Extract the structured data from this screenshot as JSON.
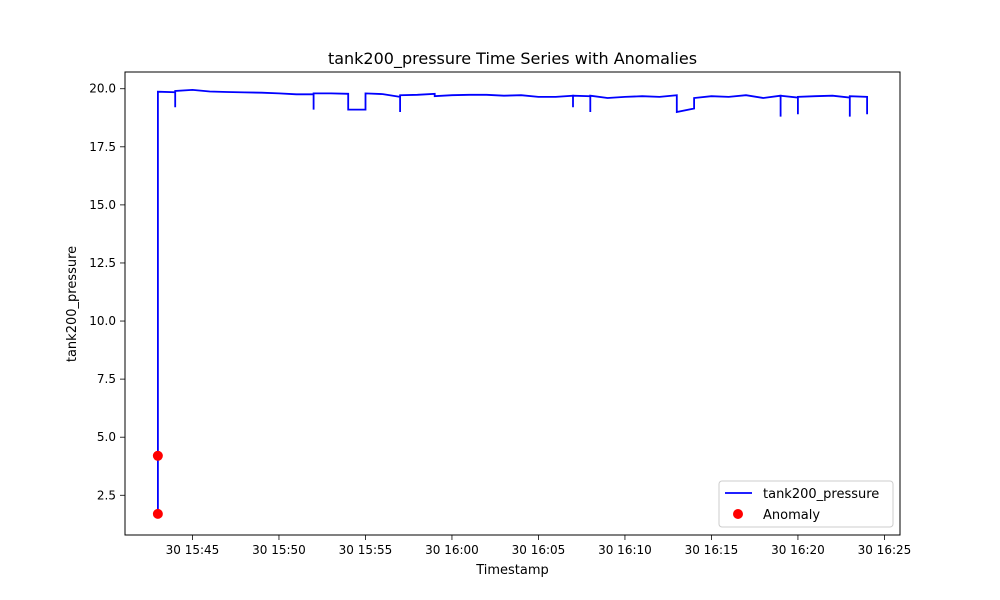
{
  "chart_data": {
    "type": "line",
    "title": "tank200_pressure Time Series with Anomalies",
    "xlabel": "Timestamp",
    "ylabel": "tank200_pressure",
    "xlim": [
      "15:41:06",
      "16:25:54"
    ],
    "ylim": [
      0.79,
      20.72
    ],
    "x_ticks": [
      "30 15:45",
      "30 15:50",
      "30 15:55",
      "30 16:00",
      "30 16:05",
      "30 16:10",
      "30 16:15",
      "30 16:20",
      "30 16:25"
    ],
    "y_ticks": [
      "2.5",
      "5.0",
      "7.5",
      "10.0",
      "12.5",
      "15.0",
      "17.5",
      "20.0"
    ],
    "grid": false,
    "legend_position": "lower right",
    "series": [
      {
        "name": "tank200_pressure",
        "color": "#0000ff",
        "points": [
          [
            "15:43",
            1.7
          ],
          [
            "15:43",
            4.2
          ],
          [
            "15:43",
            19.87
          ],
          [
            "15:44",
            19.85
          ],
          [
            "15:44",
            19.2
          ],
          [
            "15:44",
            19.9
          ],
          [
            "15:45",
            19.95
          ],
          [
            "15:46",
            19.88
          ],
          [
            "15:47",
            19.86
          ],
          [
            "15:48",
            19.84
          ],
          [
            "15:49",
            19.83
          ],
          [
            "15:50",
            19.8
          ],
          [
            "15:51",
            19.76
          ],
          [
            "15:52",
            19.76
          ],
          [
            "15:52",
            19.1
          ],
          [
            "15:52",
            19.8
          ],
          [
            "15:53",
            19.8
          ],
          [
            "15:54",
            19.78
          ],
          [
            "15:54",
            19.1
          ],
          [
            "15:55",
            19.1
          ],
          [
            "15:55",
            19.8
          ],
          [
            "15:56",
            19.77
          ],
          [
            "15:57",
            19.65
          ],
          [
            "15:57",
            19.0
          ],
          [
            "15:57",
            19.72
          ],
          [
            "15:58",
            19.74
          ],
          [
            "15:59",
            19.78
          ],
          [
            "15:59",
            19.68
          ],
          [
            "16:00",
            19.72
          ],
          [
            "16:01",
            19.74
          ],
          [
            "16:02",
            19.74
          ],
          [
            "16:03",
            19.7
          ],
          [
            "16:04",
            19.72
          ],
          [
            "16:05",
            19.65
          ],
          [
            "16:06",
            19.65
          ],
          [
            "16:07",
            19.7
          ],
          [
            "16:07",
            19.2
          ],
          [
            "16:07",
            19.7
          ],
          [
            "16:08",
            19.68
          ],
          [
            "16:08",
            19.0
          ],
          [
            "16:08",
            19.7
          ],
          [
            "16:09",
            19.6
          ],
          [
            "16:10",
            19.65
          ],
          [
            "16:11",
            19.68
          ],
          [
            "16:12",
            19.65
          ],
          [
            "16:13",
            19.72
          ],
          [
            "16:13",
            19.0
          ],
          [
            "16:14",
            19.15
          ],
          [
            "16:14",
            19.6
          ],
          [
            "16:15",
            19.68
          ],
          [
            "16:16",
            19.65
          ],
          [
            "16:17",
            19.72
          ],
          [
            "16:18",
            19.6
          ],
          [
            "16:19",
            19.7
          ],
          [
            "16:19",
            18.8
          ],
          [
            "16:19",
            19.7
          ],
          [
            "16:20",
            19.62
          ],
          [
            "16:20",
            18.9
          ],
          [
            "16:20",
            19.65
          ],
          [
            "16:21",
            19.68
          ],
          [
            "16:22",
            19.7
          ],
          [
            "16:23",
            19.62
          ],
          [
            "16:23",
            18.8
          ],
          [
            "16:23",
            19.68
          ],
          [
            "16:24",
            19.65
          ],
          [
            "16:24",
            18.9
          ]
        ]
      }
    ],
    "anomalies": {
      "name": "Anomaly",
      "color": "#ff0000",
      "points": [
        [
          "15:43",
          4.2
        ],
        [
          "15:43",
          1.7
        ]
      ]
    }
  }
}
